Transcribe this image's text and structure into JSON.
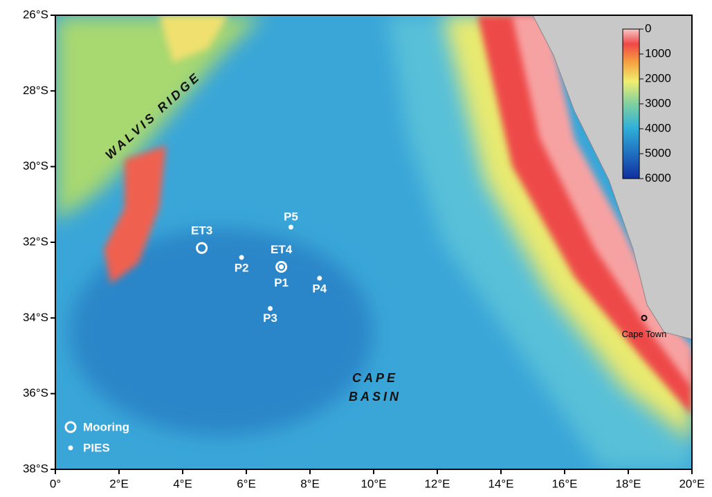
{
  "map": {
    "xlim": [
      0,
      20
    ],
    "ylim": [
      -38,
      -26
    ],
    "xticks": [
      {
        "value": 0,
        "label": "0°"
      },
      {
        "value": 2,
        "label": "2°E"
      },
      {
        "value": 4,
        "label": "4°E"
      },
      {
        "value": 6,
        "label": "6°E"
      },
      {
        "value": 8,
        "label": "8°E"
      },
      {
        "value": 10,
        "label": "10°E"
      },
      {
        "value": 12,
        "label": "12°E"
      },
      {
        "value": 14,
        "label": "14°E"
      },
      {
        "value": 16,
        "label": "16°E"
      },
      {
        "value": 18,
        "label": "18°E"
      },
      {
        "value": 20,
        "label": "20°E"
      }
    ],
    "yticks": [
      {
        "value": -26,
        "label": "26°S"
      },
      {
        "value": -28,
        "label": "28°S"
      },
      {
        "value": -30,
        "label": "30°S"
      },
      {
        "value": -32,
        "label": "32°S"
      },
      {
        "value": -34,
        "label": "34°S"
      },
      {
        "value": -36,
        "label": "36°S"
      },
      {
        "value": -38,
        "label": "38°S"
      }
    ],
    "colorbar": {
      "lim": [
        0,
        6000
      ],
      "ticks": [
        0,
        1000,
        2000,
        3000,
        4000,
        5000,
        6000
      ]
    },
    "stations": [
      {
        "name": "ET3",
        "lon": 4.6,
        "lat": -32.15,
        "kind": "mooring"
      },
      {
        "name": "P2",
        "lon": 5.85,
        "lat": -32.4,
        "kind": "pies"
      },
      {
        "name": "ET4",
        "lon": 7.1,
        "lat": -32.65,
        "kind": "mooring"
      },
      {
        "name": "P1",
        "lon": 7.1,
        "lat": -32.65,
        "kind": "pies"
      },
      {
        "name": "P5",
        "lon": 7.4,
        "lat": -31.6,
        "kind": "pies"
      },
      {
        "name": "P4",
        "lon": 8.3,
        "lat": -32.95,
        "kind": "pies"
      },
      {
        "name": "P3",
        "lon": 6.75,
        "lat": -33.75,
        "kind": "pies"
      }
    ],
    "city": {
      "name": "Cape Town",
      "lon": 18.5,
      "lat": -34.0
    },
    "regions": {
      "ridge": "WALVIS RIDGE",
      "basin": [
        "CAPE",
        "BASIN"
      ]
    },
    "legend": {
      "mooring": "Mooring",
      "pies": "PIES"
    }
  }
}
